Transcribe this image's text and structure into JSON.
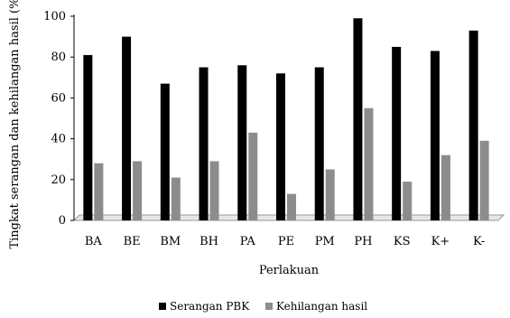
{
  "chart_data": {
    "type": "bar",
    "title": "",
    "xlabel": "Perlakuan",
    "ylabel": "Tingkat serangan dan kehilangan hasil (%)",
    "ylim": [
      0,
      100
    ],
    "yticks": [
      0,
      20,
      40,
      60,
      80,
      100
    ],
    "grid": false,
    "legend_position": "bottom",
    "categories": [
      "BA",
      "BE",
      "BM",
      "BH",
      "PA",
      "PE",
      "PM",
      "PH",
      "KS",
      "K+",
      "K-"
    ],
    "series": [
      {
        "name": "Serangan PBK",
        "color": "#000000",
        "values": [
          81,
          90,
          67,
          75,
          76,
          72,
          75,
          99,
          85,
          83,
          93
        ]
      },
      {
        "name": "Kehilangan hasil",
        "color": "#8c8c8c",
        "values": [
          28,
          29,
          21,
          29,
          43,
          13,
          25,
          55,
          19,
          32,
          39
        ]
      }
    ]
  }
}
